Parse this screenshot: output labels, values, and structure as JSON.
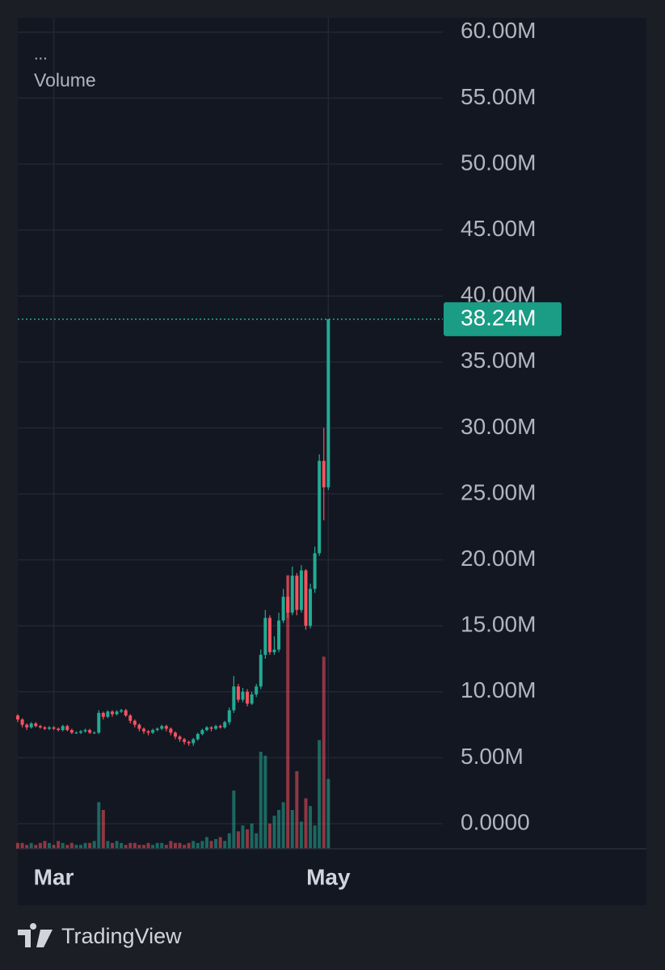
{
  "chart_data": {
    "type": "candlestick",
    "menu": "...",
    "volume_label": "Volume",
    "last_price_label": "38.24M",
    "categories": [
      null,
      null,
      null,
      null,
      null,
      null,
      null,
      null,
      "Mar",
      null,
      null,
      null,
      null,
      null,
      null,
      null,
      null,
      null,
      null,
      null,
      null,
      null,
      null,
      null,
      null,
      null,
      null,
      null,
      null,
      null,
      null,
      null,
      null,
      null,
      null,
      null,
      null,
      null,
      null,
      null,
      null,
      null,
      null,
      null,
      null,
      null,
      null,
      null,
      null,
      null,
      null,
      null,
      null,
      null,
      null,
      null,
      null,
      null,
      null,
      null,
      null,
      null,
      null,
      null,
      null,
      null,
      null,
      null,
      null,
      "May"
    ],
    "open": [
      8.2,
      7.9,
      7.5,
      7.3,
      7.6,
      7.4,
      7.3,
      7.2,
      7.3,
      7.2,
      7.1,
      7.4,
      7.1,
      6.9,
      6.9,
      7.0,
      7.1,
      6.9,
      6.9,
      8.4,
      8.1,
      8.5,
      8.3,
      8.5,
      8.6,
      8.2,
      7.8,
      7.5,
      7.2,
      7.0,
      6.9,
      7.1,
      7.2,
      7.4,
      7.2,
      6.9,
      6.6,
      6.4,
      6.2,
      6.1,
      6.4,
      6.8,
      7.1,
      7.3,
      7.2,
      7.4,
      7.3,
      7.7,
      8.6,
      10.4,
      9.4,
      10.0,
      9.1,
      9.8,
      10.4,
      12.8,
      15.6,
      13.0,
      13.2,
      15.4,
      17.2,
      16.0,
      18.8,
      16.2,
      19.2,
      15.0,
      17.8,
      20.5,
      27.5,
      25.5
    ],
    "high": [
      8.3,
      8.0,
      7.6,
      7.7,
      7.7,
      7.5,
      7.4,
      7.4,
      7.4,
      7.3,
      7.5,
      7.5,
      7.2,
      7.0,
      7.1,
      7.2,
      7.2,
      7.0,
      8.6,
      8.5,
      8.6,
      8.6,
      8.6,
      8.7,
      8.7,
      8.3,
      7.9,
      7.6,
      7.3,
      7.1,
      7.2,
      7.3,
      7.5,
      7.5,
      7.3,
      7.0,
      6.7,
      6.5,
      6.3,
      6.5,
      6.9,
      7.2,
      7.4,
      7.4,
      7.5,
      7.5,
      7.8,
      8.8,
      11.2,
      10.6,
      10.3,
      10.2,
      10.0,
      10.6,
      13.2,
      16.2,
      15.8,
      14.2,
      16.0,
      17.8,
      18.8,
      19.5,
      19.0,
      19.6,
      19.3,
      18.2,
      21.0,
      28.0,
      30.0,
      38.24
    ],
    "low": [
      7.7,
      7.3,
      7.1,
      7.2,
      7.3,
      7.2,
      7.1,
      7.1,
      7.1,
      7.0,
      7.0,
      7.0,
      6.8,
      6.8,
      6.8,
      6.9,
      6.8,
      6.8,
      6.8,
      7.9,
      8.0,
      8.1,
      8.2,
      8.4,
      8.1,
      7.6,
      7.3,
      7.0,
      6.8,
      6.7,
      6.8,
      7.0,
      7.1,
      7.0,
      6.7,
      6.4,
      6.2,
      6.0,
      5.9,
      5.9,
      6.3,
      6.7,
      7.0,
      7.0,
      7.1,
      7.2,
      7.2,
      7.5,
      8.4,
      9.2,
      9.2,
      8.9,
      9.0,
      9.6,
      10.2,
      12.5,
      12.8,
      12.8,
      13.0,
      15.2,
      15.6,
      15.8,
      15.8,
      16.0,
      14.7,
      14.8,
      17.5,
      20.3,
      23.0,
      25.3
    ],
    "close": [
      7.9,
      7.5,
      7.3,
      7.6,
      7.4,
      7.3,
      7.2,
      7.3,
      7.2,
      7.1,
      7.4,
      7.1,
      6.9,
      6.9,
      7.0,
      7.1,
      6.9,
      6.9,
      8.4,
      8.1,
      8.5,
      8.3,
      8.5,
      8.6,
      8.2,
      7.8,
      7.5,
      7.2,
      7.0,
      6.9,
      7.1,
      7.2,
      7.4,
      7.2,
      6.9,
      6.6,
      6.4,
      6.2,
      6.1,
      6.4,
      6.8,
      7.1,
      7.3,
      7.2,
      7.4,
      7.3,
      7.7,
      8.6,
      10.4,
      9.4,
      10.0,
      9.1,
      9.8,
      10.4,
      12.8,
      15.6,
      13.0,
      13.2,
      15.4,
      17.2,
      16.0,
      18.8,
      16.2,
      19.2,
      15.0,
      17.8,
      20.5,
      27.5,
      25.5,
      38.24
    ],
    "volume": [
      3,
      3,
      2,
      3,
      2,
      3,
      4,
      3,
      2,
      4,
      3,
      2,
      3,
      2,
      2,
      3,
      3,
      4,
      24,
      20,
      4,
      3,
      4,
      3,
      2,
      3,
      3,
      2,
      2,
      3,
      2,
      3,
      3,
      2,
      4,
      3,
      3,
      2,
      3,
      4,
      3,
      4,
      6,
      4,
      5,
      6,
      4,
      8,
      30,
      9,
      12,
      10,
      13,
      8,
      50,
      48,
      13,
      17,
      20,
      24,
      141,
      20,
      40,
      14,
      26,
      22,
      12,
      56,
      99,
      36
    ],
    "up_color": "#22ab94",
    "down_color": "#f7525f",
    "ylim": [
      0,
      60
    ],
    "yticks": [
      {
        "value": 0,
        "label": "0.0000"
      },
      {
        "value": 5,
        "label": "5.00M"
      },
      {
        "value": 10,
        "label": "10.00M"
      },
      {
        "value": 15,
        "label": "15.00M"
      },
      {
        "value": 20,
        "label": "20.00M"
      },
      {
        "value": 25,
        "label": "25.00M"
      },
      {
        "value": 30,
        "label": "30.00M"
      },
      {
        "value": 35,
        "label": "35.00M"
      },
      {
        "value": 40,
        "label": "40.00M"
      },
      {
        "value": 45,
        "label": "45.00M"
      },
      {
        "value": 50,
        "label": "50.00M"
      },
      {
        "value": 55,
        "label": "55.00M"
      },
      {
        "value": 60,
        "label": "60.00M"
      }
    ],
    "y2lim": [
      0,
      150
    ],
    "grid": true
  },
  "brand": "TradingView"
}
